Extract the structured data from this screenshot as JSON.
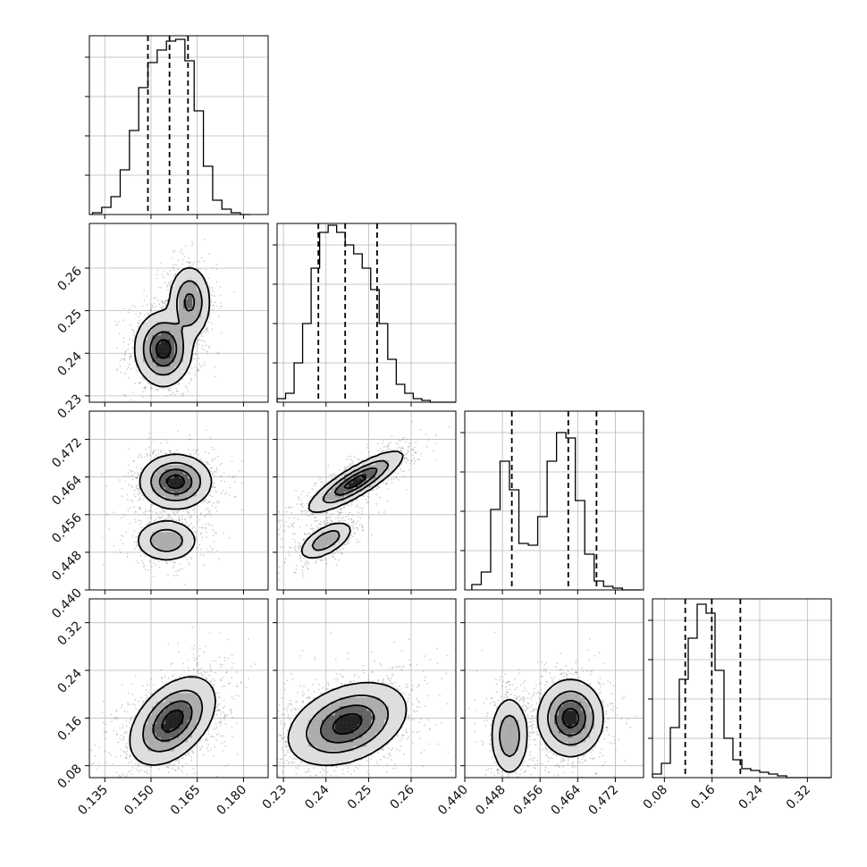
{
  "chart_data": {
    "type": "corner",
    "grid": true,
    "parameters": [
      {
        "ticks": [
          "0.135",
          "0.150",
          "0.165",
          "0.180"
        ],
        "tick_values": [
          0.135,
          0.15,
          0.165,
          0.18
        ],
        "range": [
          0.13,
          0.188
        ]
      },
      {
        "ticks": [
          "0.23",
          "0.24",
          "0.25",
          "0.26"
        ],
        "tick_values": [
          0.23,
          0.24,
          0.25,
          0.26
        ],
        "range": [
          0.2285,
          0.2705
        ]
      },
      {
        "ticks": [
          "0.440",
          "0.448",
          "0.456",
          "0.464",
          "0.472"
        ],
        "tick_values": [
          0.44,
          0.448,
          0.456,
          0.464,
          0.472
        ],
        "range": [
          0.44,
          0.478
        ]
      },
      {
        "ticks": [
          "0.08",
          "0.16",
          "0.24",
          "0.32"
        ],
        "tick_values": [
          0.08,
          0.16,
          0.24,
          0.32
        ],
        "range": [
          0.06,
          0.36
        ]
      }
    ],
    "marginals": [
      {
        "bins": [
          0.131,
          0.134,
          0.137,
          0.14,
          0.143,
          0.146,
          0.149,
          0.152,
          0.155,
          0.158,
          0.161,
          0.164,
          0.167,
          0.17,
          0.173,
          0.176,
          0.179,
          0.182
        ],
        "heights": [
          0.01,
          0.04,
          0.1,
          0.25,
          0.47,
          0.71,
          0.85,
          0.92,
          0.97,
          0.98,
          0.86,
          0.58,
          0.27,
          0.08,
          0.03,
          0.01,
          0.0
        ],
        "quantiles": [
          0.149,
          0.156,
          0.162
        ]
      },
      {
        "bins": [
          0.2285,
          0.2305,
          0.2325,
          0.2345,
          0.2365,
          0.2385,
          0.2405,
          0.2425,
          0.2445,
          0.2465,
          0.2485,
          0.2505,
          0.2525,
          0.2545,
          0.2565,
          0.2585,
          0.2605,
          0.2625,
          0.2645,
          0.2665,
          0.2685,
          0.2705
        ],
        "heights": [
          0.02,
          0.05,
          0.22,
          0.44,
          0.75,
          0.95,
          0.99,
          0.95,
          0.88,
          0.83,
          0.75,
          0.63,
          0.44,
          0.24,
          0.1,
          0.05,
          0.02,
          0.01,
          0.0,
          0.0,
          0.0
        ],
        "quantiles": [
          0.2382,
          0.2445,
          0.252
        ]
      },
      {
        "bins": [
          0.4415,
          0.4435,
          0.4455,
          0.4475,
          0.4495,
          0.4515,
          0.4535,
          0.4555,
          0.4575,
          0.4595,
          0.4615,
          0.4635,
          0.4655,
          0.4675,
          0.4695,
          0.4715,
          0.4735,
          0.4755,
          0.4775
        ],
        "heights": [
          0.03,
          0.1,
          0.45,
          0.72,
          0.56,
          0.26,
          0.25,
          0.41,
          0.72,
          0.88,
          0.85,
          0.5,
          0.2,
          0.05,
          0.02,
          0.01,
          0.0,
          0.0
        ],
        "quantiles": [
          0.45,
          0.462,
          0.468
        ]
      },
      {
        "bins": [
          0.06,
          0.075,
          0.09,
          0.105,
          0.12,
          0.135,
          0.15,
          0.165,
          0.18,
          0.195,
          0.21,
          0.225,
          0.24,
          0.255,
          0.27,
          0.285,
          0.3,
          0.36
        ],
        "heights": [
          0.02,
          0.08,
          0.28,
          0.55,
          0.78,
          0.97,
          0.92,
          0.6,
          0.22,
          0.1,
          0.05,
          0.04,
          0.03,
          0.02,
          0.01,
          0.0,
          0.0
        ],
        "quantiles": [
          0.115,
          0.1595,
          0.2075
        ]
      }
    ],
    "pairs": [
      {
        "row": 1,
        "col": 0,
        "modes": [
          {
            "x": 0.154,
            "y": 0.241,
            "sx": 0.004,
            "sy": 0.0038,
            "w": 0.6
          },
          {
            "x": 0.1625,
            "y": 0.252,
            "sx": 0.003,
            "sy": 0.0038,
            "w": 0.4
          }
        ]
      },
      {
        "row": 2,
        "col": 0,
        "modes": [
          {
            "x": 0.158,
            "y": 0.463,
            "sx": 0.005,
            "sy": 0.0025,
            "w": 0.65
          },
          {
            "x": 0.155,
            "y": 0.4505,
            "sx": 0.0045,
            "sy": 0.002,
            "w": 0.35
          }
        ]
      },
      {
        "row": 2,
        "col": 1,
        "modes": [
          {
            "x": 0.247,
            "y": 0.463,
            "sx": 0.0048,
            "sy": 0.0028,
            "w": 0.65,
            "rho": 0.85
          },
          {
            "x": 0.24,
            "y": 0.4505,
            "sx": 0.0028,
            "sy": 0.0018,
            "w": 0.35,
            "rho": 0.6
          }
        ]
      },
      {
        "row": 3,
        "col": 0,
        "modes": [
          {
            "x": 0.157,
            "y": 0.155,
            "sx": 0.006,
            "sy": 0.032,
            "w": 1.0,
            "rho": 0.45
          }
        ]
      },
      {
        "row": 3,
        "col": 1,
        "modes": [
          {
            "x": 0.245,
            "y": 0.15,
            "sx": 0.006,
            "sy": 0.03,
            "w": 1.0,
            "rho": 0.35
          }
        ]
      },
      {
        "row": 3,
        "col": 2,
        "modes": [
          {
            "x": 0.4625,
            "y": 0.16,
            "sx": 0.003,
            "sy": 0.028,
            "w": 0.65
          },
          {
            "x": 0.4495,
            "y": 0.13,
            "sx": 0.0018,
            "sy": 0.03,
            "w": 0.35
          }
        ]
      }
    ]
  }
}
